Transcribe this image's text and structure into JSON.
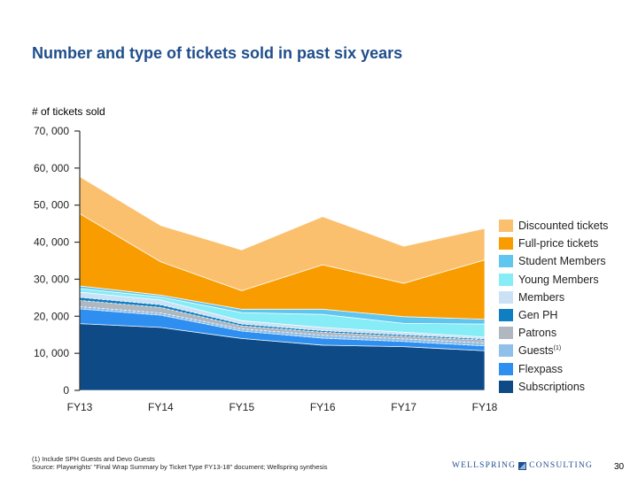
{
  "title": "Number and type of tickets sold in past six years",
  "chart_data": {
    "type": "area",
    "stacked": true,
    "ylabel": "# of tickets sold",
    "ylim": [
      0,
      70000
    ],
    "yticks": [
      "0",
      "10, 000",
      "20, 000",
      "30, 000",
      "40, 000",
      "50, 000",
      "60, 000",
      "70, 000"
    ],
    "ytick_values": [
      0,
      10000,
      20000,
      30000,
      40000,
      50000,
      60000,
      70000
    ],
    "categories": [
      "FY13",
      "FY14",
      "FY15",
      "FY16",
      "FY17",
      "FY18"
    ],
    "series": [
      {
        "name": "Subscriptions",
        "color": "#0d4a86",
        "values": [
          18000,
          17000,
          14000,
          12200,
          11800,
          10700
        ]
      },
      {
        "name": "Flexpass",
        "color": "#2e8ff0",
        "values": [
          4000,
          3300,
          2000,
          1900,
          1400,
          1300
        ]
      },
      {
        "name": "Guests",
        "sup": "(1)",
        "color": "#8fc0ea",
        "values": [
          600,
          600,
          600,
          800,
          700,
          800
        ]
      },
      {
        "name": "Patrons",
        "color": "#b0b7bf",
        "values": [
          1700,
          1500,
          800,
          800,
          700,
          800
        ]
      },
      {
        "name": "Gen PH",
        "color": "#0f7fc1",
        "values": [
          800,
          700,
          500,
          400,
          400,
          300
        ]
      },
      {
        "name": "Members",
        "color": "#cbe2f6",
        "values": [
          1400,
          1300,
          900,
          900,
          700,
          500
        ]
      },
      {
        "name": "Young Members",
        "color": "#86ecf5",
        "values": [
          1000,
          800,
          2200,
          3500,
          2400,
          3500
        ]
      },
      {
        "name": "Student Members",
        "color": "#5fc6f0",
        "values": [
          700,
          500,
          900,
          1400,
          1800,
          1300
        ]
      },
      {
        "name": "Full-price tickets",
        "color": "#f89c00",
        "values": [
          19500,
          9000,
          5000,
          12000,
          9000,
          16000
        ]
      },
      {
        "name": "Discounted tickets",
        "color": "#fbc06e",
        "values": [
          10000,
          9800,
          11000,
          13000,
          10000,
          8500
        ]
      }
    ],
    "legend": "right",
    "grid": false
  },
  "footnote": {
    "line1": "(1) Include SPH Guests and Devo Guests",
    "line2": "Source: Playwrights' \"Final Wrap Summary by Ticket Type FY13-18\" document; Wellspring synthesis"
  },
  "brand": {
    "left": "WELLSPRING",
    "right": "CONSULTING"
  },
  "page_number": "30"
}
